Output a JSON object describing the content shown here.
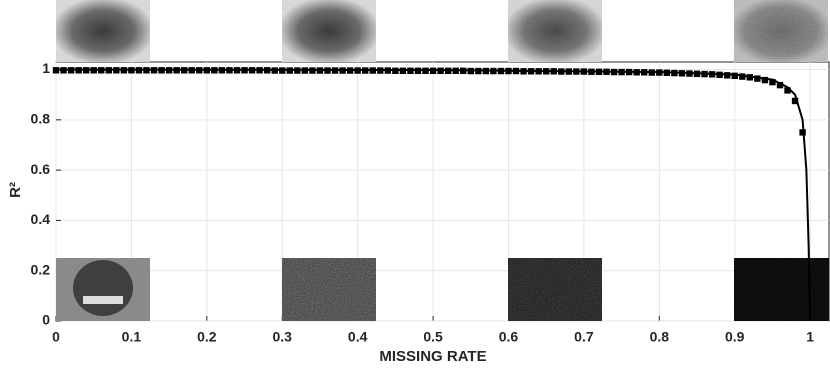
{
  "chart_data": {
    "type": "scatter",
    "xlabel": "MISSING RATE",
    "ylabel": "R²",
    "xlim": [
      0,
      1.025
    ],
    "ylim": [
      0,
      1.03
    ],
    "xticks": [
      0,
      0.1,
      0.2,
      0.3,
      0.4,
      0.5,
      0.6,
      0.7,
      0.8,
      0.9,
      1
    ],
    "yticks": [
      0,
      0.2,
      0.4,
      0.6,
      0.8,
      1
    ],
    "grid": true,
    "series": [
      {
        "style": "markers",
        "color": "#000000",
        "x": [
          0,
          0.01,
          0.02,
          0.03,
          0.04,
          0.05,
          0.06,
          0.07,
          0.08,
          0.09,
          0.1,
          0.11,
          0.12,
          0.13,
          0.14,
          0.15,
          0.16,
          0.17,
          0.18,
          0.19,
          0.2,
          0.21,
          0.22,
          0.23,
          0.24,
          0.25,
          0.26,
          0.27,
          0.28,
          0.29,
          0.3,
          0.31,
          0.32,
          0.33,
          0.34,
          0.35,
          0.36,
          0.37,
          0.38,
          0.39,
          0.4,
          0.41,
          0.42,
          0.43,
          0.44,
          0.45,
          0.46,
          0.47,
          0.48,
          0.49,
          0.5,
          0.51,
          0.52,
          0.53,
          0.54,
          0.55,
          0.56,
          0.57,
          0.58,
          0.59,
          0.6,
          0.61,
          0.62,
          0.63,
          0.64,
          0.65,
          0.66,
          0.67,
          0.68,
          0.69,
          0.7,
          0.71,
          0.72,
          0.73,
          0.74,
          0.75,
          0.76,
          0.77,
          0.78,
          0.79,
          0.8,
          0.81,
          0.82,
          0.83,
          0.84,
          0.85,
          0.86,
          0.87,
          0.88,
          0.89,
          0.9,
          0.91,
          0.92,
          0.93,
          0.94,
          0.95,
          0.96,
          0.97,
          0.98,
          0.99
        ],
        "values": [
          0.997,
          0.997,
          0.997,
          0.997,
          0.997,
          0.997,
          0.997,
          0.997,
          0.997,
          0.997,
          0.997,
          0.997,
          0.997,
          0.997,
          0.997,
          0.997,
          0.997,
          0.997,
          0.997,
          0.997,
          0.997,
          0.997,
          0.997,
          0.997,
          0.997,
          0.997,
          0.997,
          0.997,
          0.997,
          0.996,
          0.996,
          0.996,
          0.996,
          0.996,
          0.996,
          0.996,
          0.996,
          0.996,
          0.996,
          0.996,
          0.996,
          0.996,
          0.996,
          0.996,
          0.996,
          0.995,
          0.995,
          0.995,
          0.995,
          0.995,
          0.995,
          0.995,
          0.995,
          0.995,
          0.995,
          0.994,
          0.994,
          0.994,
          0.994,
          0.994,
          0.994,
          0.994,
          0.993,
          0.993,
          0.993,
          0.993,
          0.993,
          0.992,
          0.992,
          0.992,
          0.992,
          0.991,
          0.991,
          0.991,
          0.99,
          0.99,
          0.99,
          0.989,
          0.989,
          0.988,
          0.988,
          0.987,
          0.986,
          0.985,
          0.984,
          0.983,
          0.982,
          0.981,
          0.979,
          0.977,
          0.975,
          0.972,
          0.969,
          0.964,
          0.958,
          0.95,
          0.938,
          0.917,
          0.875,
          0.75
        ]
      },
      {
        "style": "line",
        "color": "#000000",
        "x": [
          0,
          0.5,
          0.8,
          0.9,
          0.95,
          0.97,
          0.98,
          0.99,
          0.995,
          0.998,
          1
        ],
        "values": [
          1,
          0.998,
          0.99,
          0.98,
          0.96,
          0.93,
          0.9,
          0.8,
          0.6,
          0.3,
          0
        ]
      }
    ]
  }
}
